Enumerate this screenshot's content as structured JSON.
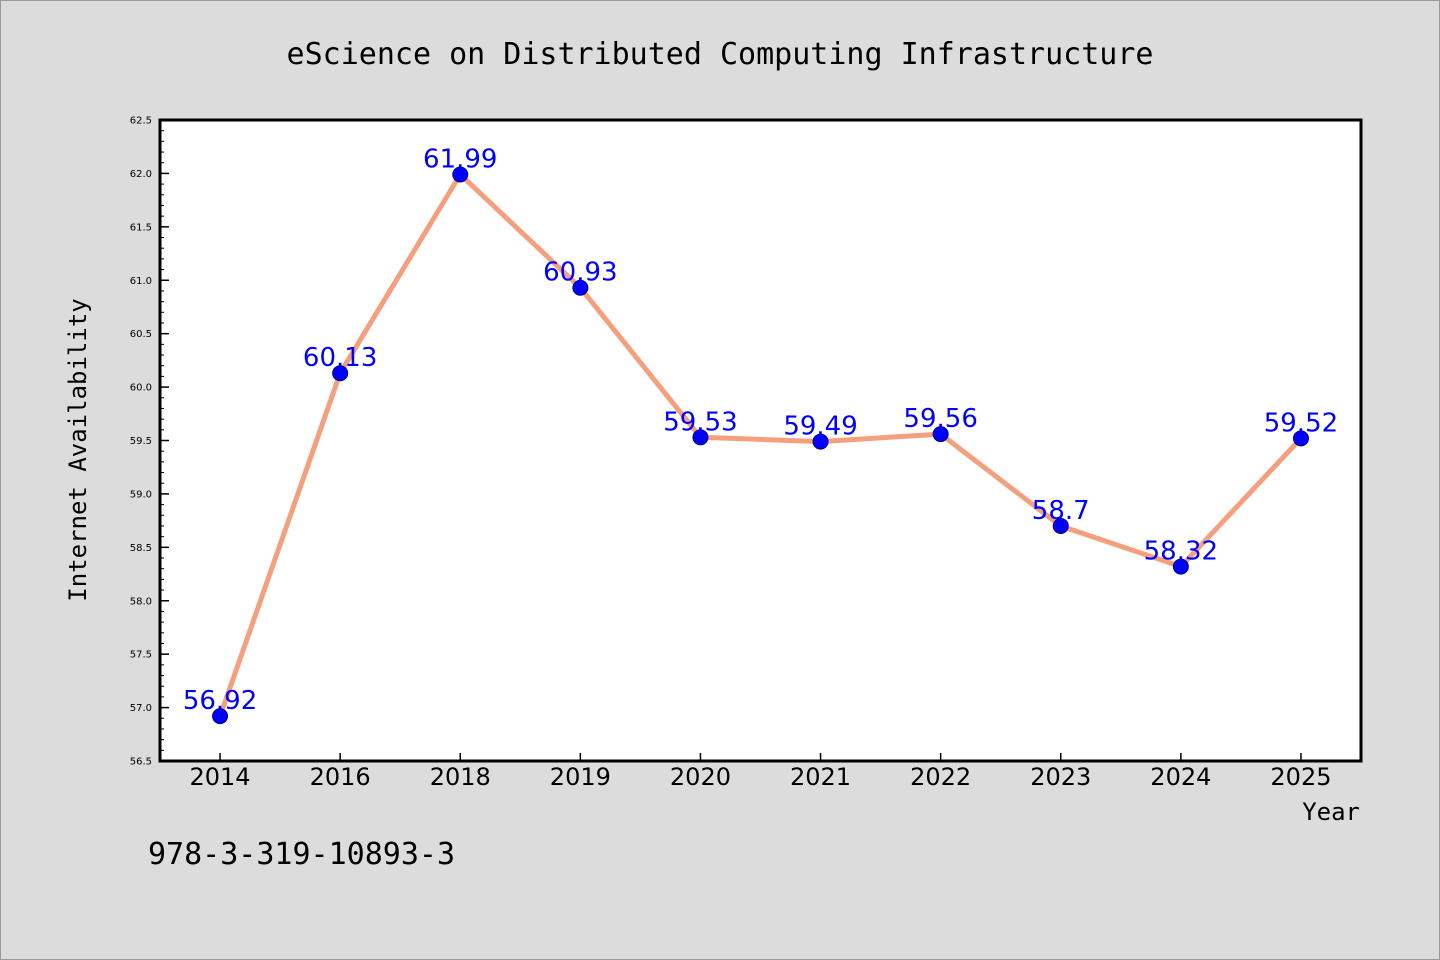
{
  "chart_data": {
    "type": "line",
    "title": "eScience on Distributed Computing Infrastructure",
    "xlabel": "Year",
    "ylabel": "Internet Availability",
    "categories": [
      "2014",
      "2016",
      "2018",
      "2019",
      "2020",
      "2021",
      "2022",
      "2023",
      "2024",
      "2025"
    ],
    "series": [
      {
        "values": [
          56.92,
          60.13,
          61.99,
          60.93,
          59.53,
          59.49,
          59.56,
          58.7,
          58.32,
          59.52
        ],
        "labels": [
          "56.92",
          "60.13",
          "61.99",
          "60.93",
          "59.53",
          "59.49",
          "59.56",
          "58.7",
          "58.32",
          "59.52"
        ],
        "line_color": "#f4a07e",
        "marker_color": "#0000ff"
      }
    ],
    "ylim": [
      56.5,
      62.5
    ],
    "yticks": [
      "56.5",
      "57.0",
      "57.5",
      "58.0",
      "58.5",
      "59.0",
      "59.5",
      "60.0",
      "60.5",
      "61.0",
      "61.5",
      "62.0",
      "62.5"
    ],
    "grid": false,
    "legend": "none"
  },
  "footer": {
    "isbn": "978-3-319-10893-3"
  }
}
